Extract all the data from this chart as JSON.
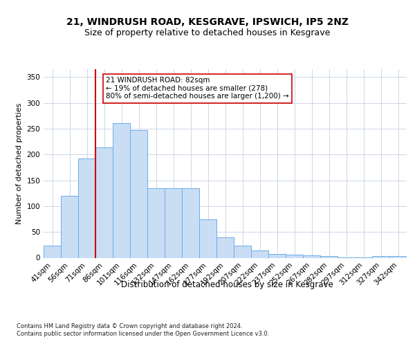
{
  "title_line1": "21, WINDRUSH ROAD, KESGRAVE, IPSWICH, IP5 2NZ",
  "title_line2": "Size of property relative to detached houses in Kesgrave",
  "xlabel": "Distribution of detached houses by size in Kesgrave",
  "ylabel": "Number of detached properties",
  "categories": [
    "41sqm",
    "56sqm",
    "71sqm",
    "86sqm",
    "101sqm",
    "116sqm",
    "132sqm",
    "147sqm",
    "162sqm",
    "177sqm",
    "192sqm",
    "207sqm",
    "222sqm",
    "237sqm",
    "252sqm",
    "267sqm",
    "282sqm",
    "297sqm",
    "312sqm",
    "327sqm",
    "342sqm"
  ],
  "values": [
    23,
    120,
    192,
    213,
    260,
    247,
    135,
    135,
    135,
    75,
    40,
    23,
    14,
    7,
    6,
    5,
    4,
    1,
    1,
    4,
    3
  ],
  "bar_color": "#c9ddf5",
  "bar_edge_color": "#6aaee8",
  "vline_color": "#cc0000",
  "vline_pos": 2.5,
  "annotation_text": "21 WINDRUSH ROAD: 82sqm\n← 19% of detached houses are smaller (278)\n80% of semi-detached houses are larger (1,200) →",
  "annotation_box_color": "#ffffff",
  "annotation_box_edge": "#cc0000",
  "ylim": [
    0,
    365
  ],
  "yticks": [
    0,
    50,
    100,
    150,
    200,
    250,
    300,
    350
  ],
  "footer_line1": "Contains HM Land Registry data © Crown copyright and database right 2024.",
  "footer_line2": "Contains public sector information licensed under the Open Government Licence v3.0.",
  "bg_color": "#ffffff",
  "grid_color": "#ccd6e8",
  "title_fontsize": 10,
  "subtitle_fontsize": 9,
  "tick_fontsize": 7.5,
  "ylabel_fontsize": 8,
  "xlabel_fontsize": 8.5,
  "annotation_fontsize": 7.5,
  "footer_fontsize": 6
}
